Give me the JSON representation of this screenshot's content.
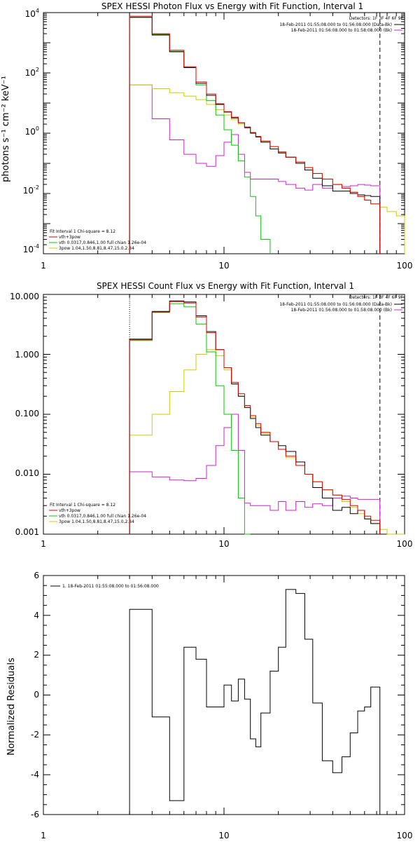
{
  "chart_data": [
    {
      "type": "line",
      "title": "SPEX HESSI Photon Flux vs Energy with Fit Function, Interval 1",
      "ylabel": "photons s⁻¹ cm⁻² keV⁻¹",
      "xscale": "log",
      "yscale": "log",
      "xlim": [
        1,
        100
      ],
      "ylim": [
        0.0001,
        10000
      ],
      "x_ticks": [
        "1",
        "10",
        "100"
      ],
      "y_ticks": [
        {
          "mant": "10",
          "exp": "4"
        },
        {
          "mant": "10",
          "exp": "2"
        },
        {
          "mant": "10",
          "exp": "0"
        },
        {
          "mant": "10",
          "exp": "-2"
        },
        {
          "mant": "10",
          "exp": "-4"
        }
      ],
      "detectors_label": "Detectors: 1F 3F 4F 6F 9F",
      "time_legend": [
        {
          "text": "18-Feb-2011 01:55:08.000 to 01:56:08.000 (Data-Bk)",
          "color": "#000000"
        },
        {
          "text": "18-Feb-2011 01:56:08.000 to 01:58:08.000 (Bk)",
          "color": "#d020d0"
        }
      ],
      "fit_header": "Fit Interval 1   Chi-square = 8.12",
      "fit_legend": [
        {
          "text": "vth+3pow",
          "color": "#e00000"
        },
        {
          "text": "vth 0.0317,0.846,1.00  full chian 1.26e-04",
          "color": "#00cc00"
        },
        {
          "text": "3pow 1.04,1.50,8.81,8.47,15.0,2.84",
          "color": "#cccc00"
        }
      ],
      "vlines": [
        {
          "x": 3.0,
          "style": "dotted"
        },
        {
          "x": 73,
          "style": "dashed"
        }
      ],
      "edges": [
        3,
        4,
        5,
        6,
        7,
        8,
        9,
        10,
        11,
        12,
        13,
        14,
        15,
        16,
        18,
        20,
        22,
        25,
        28,
        31,
        35,
        40,
        45,
        50,
        55,
        60,
        65,
        73,
        80,
        90,
        100
      ],
      "series": [
        {
          "name": "data",
          "color": "#000000",
          "values": [
            7000,
            1800,
            500,
            150,
            45,
            18,
            9,
            5,
            3.2,
            2.2,
            1.6,
            1.0,
            0.75,
            0.5,
            0.3,
            0.22,
            0.16,
            0.1,
            0.06,
            0.032,
            0.018,
            0.012,
            0.012,
            0.01,
            0.009,
            0.0085,
            0.008,
            null,
            null,
            null
          ]
        },
        {
          "name": "vth+3pow",
          "color": "#e00000",
          "values": [
            7600,
            2000,
            560,
            160,
            50,
            20,
            9.5,
            5.2,
            3.4,
            2.2,
            1.5,
            1.05,
            0.78,
            0.55,
            0.36,
            0.24,
            0.16,
            0.11,
            0.072,
            0.046,
            0.03,
            0.02,
            0.015,
            0.011,
            0.008,
            0.006,
            0.0045,
            null,
            null,
            null
          ]
        },
        {
          "name": "vth",
          "color": "#00cc00",
          "values": [
            7000,
            1900,
            520,
            150,
            40,
            12,
            4,
            1.3,
            0.4,
            0.12,
            0.035,
            0.008,
            0.0018,
            0.0003,
            null,
            null,
            null,
            null,
            null,
            null,
            null,
            null,
            null,
            null,
            null,
            null,
            null,
            null,
            null,
            null
          ]
        },
        {
          "name": "3pow",
          "color": "#cccc00",
          "values": [
            40,
            30,
            22,
            17,
            13,
            9,
            6,
            4,
            2.8,
            2,
            1.5,
            1.05,
            0.75,
            0.55,
            0.36,
            0.24,
            0.16,
            0.11,
            0.072,
            0.046,
            0.03,
            0.02,
            0.015,
            0.011,
            0.008,
            0.006,
            0.0045,
            0.0035,
            0.0025,
            0.0018
          ]
        },
        {
          "name": "background",
          "color": "#d020d0",
          "values": [
            40,
            3,
            0.6,
            0.2,
            0.1,
            0.08,
            0.18,
            0.5,
            0.9,
            0.2,
            0.05,
            0.03,
            0.03,
            0.03,
            0.03,
            0.025,
            0.02,
            0.015,
            0.013,
            0.02,
            0.015,
            0.02,
            0.017,
            0.018,
            0.02,
            0.019,
            0.018,
            null,
            null,
            null
          ]
        }
      ]
    },
    {
      "type": "line",
      "title": "SPEX HESSI Count Flux vs Energy with Fit Function, Interval 1",
      "ylabel": "",
      "xscale": "log",
      "yscale": "log",
      "xlim": [
        1,
        100
      ],
      "ylim": [
        0.001,
        10
      ],
      "x_ticks": [
        "1",
        "10",
        "100"
      ],
      "y_ticks": [
        "10.000",
        "1.000",
        "0.100",
        "0.010",
        "0.001"
      ],
      "detectors_label": "Detectors: 1F 3F 4F 6F 9F",
      "time_legend": [
        {
          "text": "18-Feb-2011 01:55:08.000 to 01:56:08.000 (Data-Bk)",
          "color": "#000000"
        },
        {
          "text": "18-Feb-2011 01:56:08.000 to 01:58:08.000 (Bk)",
          "color": "#d020d0"
        }
      ],
      "fit_header": "Fit Interval 1   Chi-square = 8.12",
      "fit_legend": [
        {
          "text": "vth+3pow",
          "color": "#e00000"
        },
        {
          "text": "vth 0.0317,0.846,1.00  full chian 1.26e-04",
          "color": "#00cc00"
        },
        {
          "text": "3pow 1.04,1.50,8.81,8.47,15.0,2.84",
          "color": "#cccc00"
        }
      ],
      "vlines": [
        {
          "x": 3.0,
          "style": "dotted"
        },
        {
          "x": 73,
          "style": "dashed"
        }
      ],
      "edges": [
        3,
        4,
        5,
        6,
        7,
        8,
        9,
        10,
        11,
        12,
        13,
        14,
        15,
        16,
        18,
        20,
        22,
        25,
        28,
        31,
        35,
        40,
        45,
        50,
        55,
        60,
        65,
        73,
        80,
        90,
        100
      ],
      "series": [
        {
          "name": "data",
          "color": "#000000",
          "values": [
            1.8,
            5.2,
            7.8,
            7.5,
            4.4,
            2.4,
            1.2,
            0.6,
            0.32,
            0.2,
            0.13,
            0.085,
            0.06,
            0.045,
            0.035,
            0.03,
            0.024,
            0.016,
            0.01,
            0.006,
            0.004,
            0.0025,
            0.0028,
            0.0022,
            0.0025,
            0.0018,
            0.0015,
            null,
            null,
            null
          ]
        },
        {
          "name": "vth+3pow",
          "color": "#e00000",
          "values": [
            1.75,
            5.1,
            7.6,
            7.2,
            4.2,
            2.3,
            1.2,
            0.6,
            0.34,
            0.22,
            0.14,
            0.095,
            0.07,
            0.05,
            0.035,
            0.026,
            0.02,
            0.014,
            0.01,
            0.0075,
            0.0055,
            0.0045,
            0.0038,
            0.003,
            0.0025,
            0.002,
            0.0017,
            null,
            null,
            null
          ]
        },
        {
          "name": "vth",
          "color": "#00cc00",
          "values": [
            1.7,
            5.0,
            7.0,
            6.2,
            3.2,
            1.1,
            0.3,
            0.1,
            0.025,
            0.004,
            0.0008,
            null,
            null,
            null,
            null,
            null,
            null,
            null,
            null,
            null,
            null,
            null,
            null,
            null,
            null,
            null,
            null,
            null,
            null,
            null
          ]
        },
        {
          "name": "3pow",
          "color": "#cccc00",
          "values": [
            0.045,
            0.1,
            0.24,
            0.55,
            1.0,
            1.2,
            0.95,
            0.55,
            0.32,
            0.2,
            0.13,
            0.09,
            0.065,
            0.048,
            0.035,
            0.026,
            0.019,
            0.014,
            0.01,
            0.0075,
            0.0055,
            0.0045,
            0.0035,
            0.0028,
            0.0022,
            0.0018,
            0.0015,
            0.0012,
            0.001,
            0.0009
          ]
        },
        {
          "name": "background",
          "color": "#d020d0",
          "values": [
            0.011,
            0.009,
            0.008,
            0.0078,
            0.0085,
            0.014,
            0.03,
            0.06,
            0.1,
            0.025,
            0.0033,
            0.003,
            0.003,
            0.003,
            0.0025,
            0.0035,
            0.0025,
            0.0035,
            0.0028,
            0.0032,
            0.003,
            0.004,
            0.0043,
            0.004,
            0.0038,
            0.0038,
            0.0038,
            null,
            null,
            null
          ]
        }
      ]
    },
    {
      "type": "line",
      "title": "",
      "ylabel": "Normalized Residuals",
      "xscale": "log",
      "yscale": "linear",
      "xlim": [
        1,
        100
      ],
      "ylim": [
        -6,
        6
      ],
      "x_ticks": [
        "1",
        "10",
        "100"
      ],
      "y_ticks": [
        "6",
        "4",
        "2",
        "0",
        "-2",
        "-4",
        "-6"
      ],
      "legend": [
        {
          "text": "1. 18-Feb-2011 01:55:08.000 to 01:56:08.000",
          "color": "#000000"
        }
      ],
      "edges": [
        3,
        4,
        5,
        6,
        7,
        8,
        9,
        10,
        11,
        12,
        13,
        14,
        15,
        16,
        18,
        20,
        22,
        25,
        28,
        31,
        35,
        40,
        45,
        50,
        55,
        60,
        65,
        73
      ],
      "series": [
        {
          "name": "residuals",
          "color": "#000000",
          "values": [
            4.3,
            -1.1,
            -5.3,
            2.4,
            1.8,
            -0.6,
            -0.6,
            0.5,
            -0.3,
            0.8,
            -0.2,
            -2.2,
            -2.6,
            -0.9,
            1.2,
            2.4,
            5.3,
            5.1,
            2.8,
            -0.4,
            -3.3,
            -3.9,
            -3.1,
            -1.9,
            -0.8,
            -0.6,
            0.4
          ]
        }
      ]
    }
  ]
}
